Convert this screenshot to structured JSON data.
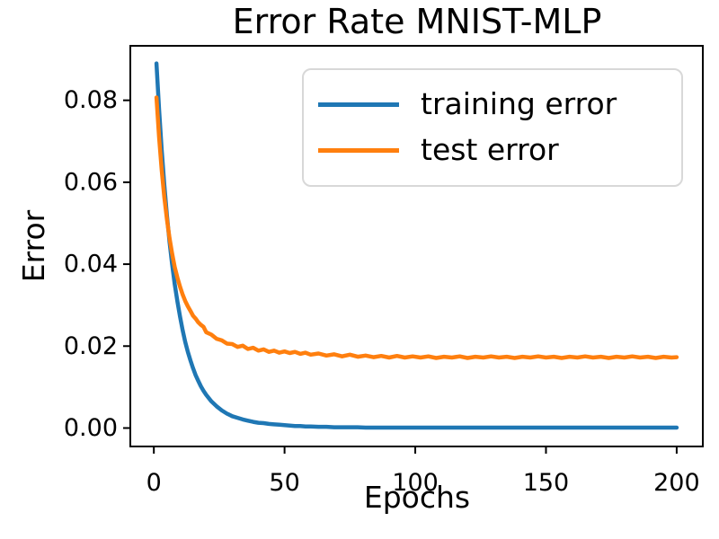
{
  "figure": {
    "title": "Error Rate MNIST-MLP",
    "xlabel": "Epochs",
    "ylabel": "Error"
  },
  "chart_data": {
    "type": "line",
    "title": "Error Rate MNIST-MLP",
    "xlabel": "Epochs",
    "ylabel": "Error",
    "grid": false,
    "legend_position": "upper right",
    "xlim": [
      -9,
      210
    ],
    "ylim": [
      -0.0045,
      0.0933
    ],
    "xticks": [
      0,
      50,
      100,
      150,
      200
    ],
    "xtick_labels": [
      "0",
      "50",
      "100",
      "150",
      "200"
    ],
    "yticks": [
      0.0,
      0.02,
      0.04,
      0.06,
      0.08
    ],
    "ytick_labels": [
      "0.00",
      "0.02",
      "0.04",
      "0.06",
      "0.08"
    ],
    "axis_color": "#000000",
    "x": [
      1,
      2,
      3,
      4,
      5,
      6,
      7,
      8,
      9,
      10,
      11,
      12,
      13,
      14,
      15,
      16,
      17,
      18,
      19,
      20,
      22,
      24,
      26,
      28,
      30,
      32,
      34,
      36,
      38,
      40,
      42,
      44,
      46,
      48,
      50,
      52,
      54,
      56,
      58,
      60,
      63,
      66,
      69,
      72,
      75,
      78,
      81,
      84,
      87,
      90,
      93,
      96,
      99,
      102,
      105,
      108,
      111,
      114,
      117,
      120,
      123,
      126,
      129,
      132,
      135,
      138,
      141,
      144,
      147,
      150,
      153,
      156,
      159,
      162,
      165,
      168,
      171,
      174,
      177,
      180,
      183,
      186,
      189,
      192,
      195,
      198,
      200
    ],
    "series": [
      {
        "name": "training error",
        "color": "#1f77b4",
        "values": [
          0.089,
          0.0778,
          0.0679,
          0.0594,
          0.052,
          0.0455,
          0.04,
          0.0351,
          0.0309,
          0.0272,
          0.0239,
          0.021,
          0.0186,
          0.0165,
          0.0146,
          0.0129,
          0.0115,
          0.0102,
          0.0091,
          0.0081,
          0.0065,
          0.0053,
          0.0043,
          0.0035,
          0.0029,
          0.0025,
          0.0021,
          0.0018,
          0.0015,
          0.0013,
          0.0012,
          0.001,
          0.0009,
          0.0008,
          0.0007,
          0.0006,
          0.0005,
          0.0005,
          0.0004,
          0.0004,
          0.0003,
          0.0003,
          0.0002,
          0.0002,
          0.0002,
          0.0002,
          0.0001,
          0.0001,
          0.0001,
          0.0001,
          0.0001,
          0.0001,
          0.0001,
          0.0001,
          0.0001,
          0.0001,
          0.0001,
          0.0001,
          0.0001,
          0.0001,
          0.0001,
          0.0001,
          0.0001,
          0.0001,
          0.0001,
          0.0001,
          0.0001,
          0.0001,
          0.0001,
          0.0001,
          0.0001,
          0.0001,
          0.0001,
          0.0001,
          0.0001,
          0.0001,
          0.0001,
          0.0001,
          0.0001,
          0.0001,
          0.0001,
          0.0001,
          0.0001,
          0.0001,
          0.0001,
          0.0001,
          0.0001
        ]
      },
      {
        "name": "test error",
        "color": "#ff7f0e",
        "values": [
          0.0807,
          0.071,
          0.063,
          0.0564,
          0.051,
          0.0464,
          0.0426,
          0.0393,
          0.0367,
          0.0345,
          0.0326,
          0.031,
          0.0297,
          0.0286,
          0.0274,
          0.0267,
          0.0258,
          0.0252,
          0.0247,
          0.0234,
          0.0228,
          0.0218,
          0.0214,
          0.0206,
          0.0205,
          0.0198,
          0.0201,
          0.0193,
          0.0196,
          0.0189,
          0.0192,
          0.0186,
          0.0189,
          0.0184,
          0.0187,
          0.0183,
          0.0186,
          0.0181,
          0.0184,
          0.0179,
          0.0182,
          0.0177,
          0.018,
          0.0175,
          0.0179,
          0.0174,
          0.0177,
          0.0173,
          0.0176,
          0.0172,
          0.0176,
          0.0172,
          0.0175,
          0.0172,
          0.0175,
          0.0171,
          0.0174,
          0.0172,
          0.0175,
          0.0171,
          0.0174,
          0.0172,
          0.0175,
          0.0172,
          0.0174,
          0.0171,
          0.0174,
          0.0172,
          0.0175,
          0.0172,
          0.0174,
          0.0171,
          0.0174,
          0.0172,
          0.0175,
          0.0172,
          0.0174,
          0.0171,
          0.0174,
          0.0172,
          0.0175,
          0.0172,
          0.0174,
          0.0171,
          0.0174,
          0.0172,
          0.0173
        ]
      }
    ]
  }
}
